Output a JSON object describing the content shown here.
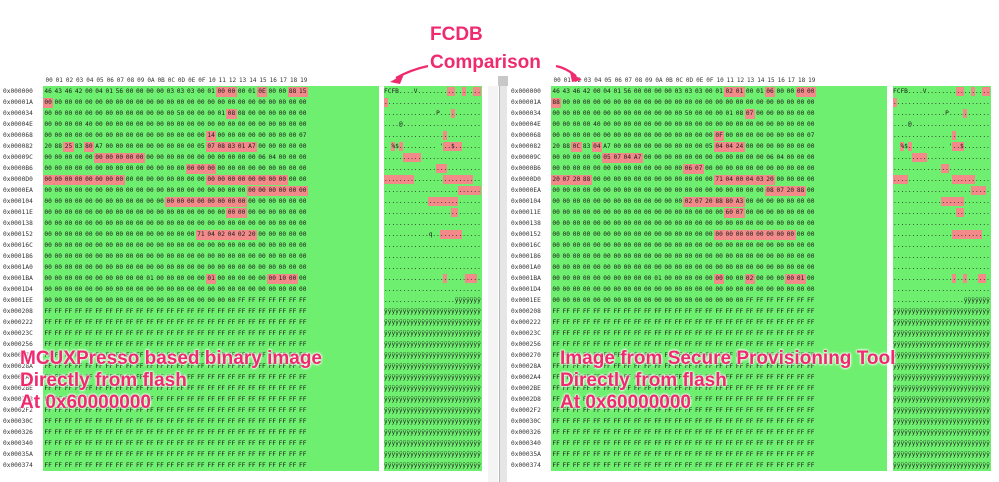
{
  "title_line1": "FCDB",
  "title_line2": "Comparison",
  "header_cols": [
    "00",
    "01",
    "02",
    "03",
    "04",
    "05",
    "06",
    "07",
    "08",
    "09",
    "0A",
    "0B",
    "0C",
    "0D",
    "0E",
    "0F",
    "10",
    "11",
    "12",
    "13",
    "14",
    "15",
    "16",
    "17",
    "18",
    "19"
  ],
  "offsets": [
    "0x000000",
    "0x00001A",
    "0x000034",
    "0x00004E",
    "0x000068",
    "0x000082",
    "0x00009C",
    "0x0000B6",
    "0x0000D0",
    "0x0000EA",
    "0x000104",
    "0x00011E",
    "0x000138",
    "0x000152",
    "0x00016C",
    "0x000186",
    "0x0001A0",
    "0x0001BA",
    "0x0001D4",
    "0x0001EE",
    "0x000208",
    "0x000222",
    "0x00023C",
    "0x000256",
    "0x000270",
    "0x00028A",
    "0x0002A4",
    "0x0002BE",
    "0x0002D8",
    "0x0002F2",
    "0x00030C",
    "0x000326",
    "0x000340",
    "0x00035A",
    "0x000374"
  ],
  "left": {
    "annotation": [
      "MCUXPresso based binary image",
      "Directly from flash",
      "At 0x60000000"
    ],
    "rows": [
      "46 43 46 42 00 04 01 56 00 00 00 00 03 03 03 00 01 00 00 00 01 0E 00 00 88 15",
      "00 00 00 00 00 00 00 00 00 00 00 00 00 00 00 00 00 00 00 00 00 00 00 00 00 00",
      "00 00 00 00 00 00 00 00 00 00 00 00 00 50 00 00 00 01 08 08 00 00 00 00 00 00",
      "00 00 00 00 40 00 00 00 00 00 00 00 00 00 00 00 00 00 00 00 00 00 00 00 00 00",
      "00 00 00 00 00 00 00 00 00 00 00 00 00 00 00 00 14 00 00 00 00 00 00 00 00 07",
      "20 88 25 83 80 A7 00 00 00 00 00 00 00 00 00 05 07 08 83 01 A7 00 00 00 00 00",
      "00 00 00 00 00 00 00 00 00 00 00 00 00 00 00 00 00 00 00 00 00 06 04 00 00 00",
      "00 00 00 00 00 00 00 00 00 00 00 00 00 00 00 00 00 00 00 00 00 00 00 00 00 00",
      "00 00 00 00 00 00 00 00 00 00 00 00 00 00 00 00 00 00 00 00 00 00 00 00 00 00",
      "00 00 00 00 00 00 00 00 00 00 00 00 00 00 00 00 00 00 00 00 00 00 00 00 00 00",
      "00 00 00 00 00 00 00 00 00 00 00 00 00 00 00 00 00 00 00 00 00 00 00 00 00 00",
      "00 00 00 00 00 00 00 00 00 00 00 00 00 00 00 00 00 00 00 00 00 00 00 00 00 00",
      "00 00 00 00 00 00 00 00 00 00 00 00 00 00 00 00 00 00 00 00 00 00 00 00 00 00",
      "00 00 00 00 00 00 00 00 00 00 00 00 00 00 00 71 04 02 04 02 20 00 00 00 00 00",
      "00 00 00 00 00 00 00 00 00 00 00 00 00 00 00 00 00 00 00 00 00 00 00 00 00 00",
      "00 00 00 00 00 00 00 00 00 00 00 00 00 00 00 00 00 00 00 00 00 00 00 00 00 00",
      "00 00 00 00 00 00 00 00 00 00 00 00 00 00 00 00 00 00 00 00 00 00 00 00 00 00",
      "00 00 00 00 00 00 00 00 00 00 01 00 00 00 00 00 01 00 00 00 00 00 00 10 00 00",
      "00 00 00 00 00 00 00 00 00 00 00 00 00 00 00 00 00 00 00 00 00 00 00 00 00 00",
      "00 00 00 00 00 00 00 00 00 00 00 00 00 00 00 00 00 00 00 FF FF FF FF FF FF FF",
      "FF FF FF FF FF FF FF FF FF FF FF FF FF FF FF FF FF FF FF FF FF FF FF FF FF FF",
      "FF FF FF FF FF FF FF FF FF FF FF FF FF FF FF FF FF FF FF FF FF FF FF FF FF FF",
      "FF FF FF FF FF FF FF FF FF FF FF FF FF FF FF FF FF FF FF FF FF FF FF FF FF FF",
      "FF FF FF FF FF FF FF FF FF FF FF FF FF FF FF FF FF FF FF FF FF FF FF FF FF FF",
      "FF FF FF FF FF FF FF FF FF FF FF FF FF FF FF FF FF FF FF FF FF FF FF FF FF FF",
      "FF FF FF FF FF FF FF FF FF FF FF FF FF FF FF FF FF FF FF FF FF FF FF FF FF FF",
      "FF FF FF FF FF FF FF FF FF FF FF FF FF FF FF FF FF FF FF FF FF FF FF FF FF FF",
      "FF FF FF FF FF FF FF FF FF FF FF FF FF FF FF FF FF FF FF FF FF FF FF FF FF FF",
      "FF FF FF FF FF FF FF FF FF FF FF FF FF FF FF FF FF FF FF FF FF FF FF FF FF FF",
      "FF FF FF FF FF FF FF FF FF FF FF FF FF FF FF FF FF FF FF FF FF FF FF FF FF FF",
      "FF FF FF FF FF FF FF FF FF FF FF FF FF FF FF FF FF FF FF FF FF FF FF FF FF FF",
      "FF FF FF FF FF FF FF FF FF FF FF FF FF FF FF FF FF FF FF FF FF FF FF FF FF FF",
      "FF FF FF FF FF FF FF FF FF FF FF FF FF FF FF FF FF FF FF FF FF FF FF FF FF FF",
      "FF FF FF FF FF FF FF FF FF FF FF FF FF FF FF FF FF FF FF FF FF FF FF FF FF FF",
      "FF FF FF FF FF FF FF FF FF FF FF FF FF FF FF FF FF FF FF FF FF FF FF FF FF FF"
    ],
    "diffs": [
      [
        0,
        17
      ],
      [
        0,
        18
      ],
      [
        0,
        21
      ],
      [
        0,
        24
      ],
      [
        0,
        25
      ],
      [
        1,
        0
      ],
      [
        2,
        18
      ],
      [
        4,
        16
      ],
      [
        5,
        2
      ],
      [
        5,
        4
      ],
      [
        5,
        16
      ],
      [
        5,
        17
      ],
      [
        5,
        18
      ],
      [
        5,
        19
      ],
      [
        5,
        20
      ],
      [
        6,
        5
      ],
      [
        6,
        6
      ],
      [
        6,
        7
      ],
      [
        6,
        8
      ],
      [
        6,
        9
      ],
      [
        7,
        14
      ],
      [
        7,
        15
      ],
      [
        7,
        16
      ],
      [
        8,
        0
      ],
      [
        8,
        1
      ],
      [
        8,
        2
      ],
      [
        8,
        3
      ],
      [
        8,
        4
      ],
      [
        8,
        5
      ],
      [
        8,
        6
      ],
      [
        8,
        7
      ],
      [
        8,
        16
      ],
      [
        8,
        17
      ],
      [
        8,
        18
      ],
      [
        8,
        19
      ],
      [
        8,
        20
      ],
      [
        8,
        21
      ],
      [
        8,
        22
      ],
      [
        8,
        23
      ],
      [
        9,
        20
      ],
      [
        9,
        21
      ],
      [
        9,
        22
      ],
      [
        9,
        23
      ],
      [
        9,
        24
      ],
      [
        9,
        25
      ],
      [
        10,
        12
      ],
      [
        10,
        13
      ],
      [
        10,
        14
      ],
      [
        10,
        15
      ],
      [
        10,
        16
      ],
      [
        10,
        17
      ],
      [
        10,
        18
      ],
      [
        10,
        19
      ],
      [
        11,
        18
      ],
      [
        11,
        19
      ],
      [
        13,
        15
      ],
      [
        13,
        16
      ],
      [
        13,
        17
      ],
      [
        13,
        18
      ],
      [
        13,
        19
      ],
      [
        13,
        20
      ],
      [
        17,
        16
      ],
      [
        17,
        22
      ],
      [
        17,
        23
      ],
      [
        17,
        24
      ]
    ],
    "ascii": [
      "FCFB....V.................",
      "..........................",
      "..............P...........",
      "....@.....................",
      "..........................",
      ". %$.......... '..$........",
      "..........................",
      "..........................",
      "..........................",
      "..........................",
      "..........................",
      "..........................",
      "..........................",
      "............q.............",
      "..........................",
      "..........................",
      "..........................",
      "..........................",
      "..........................",
      "...................ÿÿÿÿÿÿÿ",
      "ÿÿÿÿÿÿÿÿÿÿÿÿÿÿÿÿÿÿÿÿÿÿÿÿÿÿ",
      "ÿÿÿÿÿÿÿÿÿÿÿÿÿÿÿÿÿÿÿÿÿÿÿÿÿÿ",
      "ÿÿÿÿÿÿÿÿÿÿÿÿÿÿÿÿÿÿÿÿÿÿÿÿÿÿ",
      "ÿÿÿÿÿÿÿÿÿÿÿÿÿÿÿÿÿÿÿÿÿÿÿÿÿÿ",
      "ÿÿÿÿÿÿÿÿÿÿÿÿÿÿÿÿÿÿÿÿÿÿÿÿÿÿ",
      "ÿÿÿÿÿÿÿÿÿÿÿÿÿÿÿÿÿÿÿÿÿÿÿÿÿÿ",
      "ÿÿÿÿÿÿÿÿÿÿÿÿÿÿÿÿÿÿÿÿÿÿÿÿÿÿ",
      "ÿÿÿÿÿÿÿÿÿÿÿÿÿÿÿÿÿÿÿÿÿÿÿÿÿÿ",
      "ÿÿÿÿÿÿÿÿÿÿÿÿÿÿÿÿÿÿÿÿÿÿÿÿÿÿ",
      "ÿÿÿÿÿÿÿÿÿÿÿÿÿÿÿÿÿÿÿÿÿÿÿÿÿÿ",
      "ÿÿÿÿÿÿÿÿÿÿÿÿÿÿÿÿÿÿÿÿÿÿÿÿÿÿ",
      "ÿÿÿÿÿÿÿÿÿÿÿÿÿÿÿÿÿÿÿÿÿÿÿÿÿÿ",
      "ÿÿÿÿÿÿÿÿÿÿÿÿÿÿÿÿÿÿÿÿÿÿÿÿÿÿ",
      "ÿÿÿÿÿÿÿÿÿÿÿÿÿÿÿÿÿÿÿÿÿÿÿÿÿÿ",
      "ÿÿÿÿÿÿÿÿÿÿÿÿÿÿÿÿÿÿÿÿÿÿÿÿÿÿ"
    ]
  },
  "right": {
    "annotation": [
      "Image from Secure Provisioning Tool",
      "Directly from flash",
      "At 0x60000000"
    ],
    "rows": [
      "46 43 46 42 00 04 01 56 00 00 00 00 03 03 03 00 01 02 01 00 01 06 00 00 00 00",
      "88 00 00 00 00 00 00 00 00 00 00 00 00 00 00 00 00 00 00 00 00 00 00 00 00 00",
      "00 00 00 00 00 00 00 00 00 00 00 00 00 50 00 00 00 01 08 07 00 00 00 00 00 00",
      "00 00 00 00 40 00 00 00 00 00 00 00 00 00 00 00 00 00 00 00 00 00 00 00 00 00",
      "00 00 00 00 00 00 00 00 00 00 00 00 00 00 00 00 0F 00 00 00 00 00 00 00 00 07",
      "20 88 0C 83 04 A7 00 00 00 00 00 00 00 00 00 05 04 04 24 00 00 00 00 00 00 00",
      "00 00 00 00 00 05 07 04 A7 00 00 00 00 00 00 00 00 00 00 00 00 06 04 00 00 00",
      "00 00 00 00 00 00 00 00 00 00 00 00 00 06 07 00 00 00 00 00 00 00 00 00 00 00",
      "20 07 20 88 00 00 00 00 00 00 00 00 00 00 00 00 71 04 00 04 03 20 00 00 00 00",
      "00 00 00 00 00 00 00 00 00 00 00 00 00 00 00 00 00 00 00 00 00 08 07 20 88 00",
      "00 00 00 00 00 00 00 00 00 00 00 00 00 02 07 20 88 80 A3 00 00 00 00 00 00 00",
      "00 00 00 00 00 00 00 00 00 00 00 00 00 00 00 00 00 60 07 00 00 00 00 00 00 00",
      "00 00 00 00 00 00 00 00 00 00 00 00 00 00 00 00 00 00 00 00 00 00 00 00 00 00",
      "00 00 00 00 00 00 00 00 00 00 00 00 00 00 00 00 00 00 00 00 00 00 00 00 00 00",
      "00 00 00 00 00 00 00 00 00 00 00 00 00 00 00 00 00 00 00 00 00 00 00 00 00 00",
      "00 00 00 00 00 00 00 00 00 00 00 00 00 00 00 00 00 00 00 00 00 00 00 00 00 00",
      "00 00 00 00 00 00 00 00 00 00 00 00 00 00 00 00 00 00 00 00 00 00 00 00 00 00",
      "00 00 00 00 00 00 00 00 00 00 01 00 00 00 00 00 00 00 00 02 00 00 00 00 01 00",
      "00 00 00 00 00 00 00 00 00 00 00 00 00 00 00 00 00 00 00 00 00 00 00 00 00 00",
      "00 00 00 00 00 00 00 00 00 00 00 00 00 00 00 00 00 00 00 FF FF FF FF FF FF FF",
      "FF FF FF FF FF FF FF FF FF FF FF FF FF FF FF FF FF FF FF FF FF FF FF FF FF FF",
      "FF FF FF FF FF FF FF FF FF FF FF FF FF FF FF FF FF FF FF FF FF FF FF FF FF FF",
      "FF FF FF FF FF FF FF FF FF FF FF FF FF FF FF FF FF FF FF FF FF FF FF FF FF FF",
      "FF FF FF FF FF FF FF FF FF FF FF FF FF FF FF FF FF FF FF FF FF FF FF FF FF FF",
      "FF FF FF FF FF FF FF FF FF FF FF FF FF FF FF FF FF FF FF FF FF FF FF FF FF FF",
      "FF FF FF FF FF FF FF FF FF FF FF FF FF FF FF FF FF FF FF FF FF FF FF FF FF FF",
      "FF FF FF FF FF FF FF FF FF FF FF FF FF FF FF FF FF FF FF FF FF FF FF FF FF FF",
      "FF FF FF FF FF FF FF FF FF FF FF FF FF FF FF FF FF FF FF FF FF FF FF FF FF FF",
      "FF FF FF FF FF FF FF FF FF FF FF FF FF FF FF FF FF FF FF FF FF FF FF FF FF FF",
      "FF FF FF FF FF FF FF FF FF FF FF FF FF FF FF FF FF FF FF FF FF FF FF FF FF FF",
      "FF FF FF FF FF FF FF FF FF FF FF FF FF FF FF FF FF FF FF FF FF FF FF FF FF FF",
      "FF FF FF FF FF FF FF FF FF FF FF FF FF FF FF FF FF FF FF FF FF FF FF FF FF FF",
      "FF FF FF FF FF FF FF FF FF FF FF FF FF FF FF FF FF FF FF FF FF FF FF FF FF FF",
      "FF FF FF FF FF FF FF FF FF FF FF FF FF FF FF FF FF FF FF FF FF FF FF FF FF FF",
      "FF FF FF FF FF FF FF FF FF FF FF FF FF FF FF FF FF FF FF FF FF FF FF FF FF FF"
    ],
    "diffs": [
      [
        0,
        17
      ],
      [
        0,
        18
      ],
      [
        0,
        21
      ],
      [
        0,
        24
      ],
      [
        0,
        25
      ],
      [
        1,
        0
      ],
      [
        2,
        19
      ],
      [
        4,
        16
      ],
      [
        5,
        2
      ],
      [
        5,
        4
      ],
      [
        5,
        16
      ],
      [
        5,
        17
      ],
      [
        5,
        18
      ],
      [
        6,
        5
      ],
      [
        6,
        6
      ],
      [
        6,
        7
      ],
      [
        6,
        8
      ],
      [
        7,
        13
      ],
      [
        7,
        14
      ],
      [
        8,
        0
      ],
      [
        8,
        1
      ],
      [
        8,
        2
      ],
      [
        8,
        3
      ],
      [
        8,
        16
      ],
      [
        8,
        17
      ],
      [
        8,
        18
      ],
      [
        8,
        19
      ],
      [
        8,
        20
      ],
      [
        8,
        21
      ],
      [
        9,
        21
      ],
      [
        9,
        22
      ],
      [
        9,
        23
      ],
      [
        9,
        24
      ],
      [
        10,
        13
      ],
      [
        10,
        14
      ],
      [
        10,
        15
      ],
      [
        10,
        16
      ],
      [
        10,
        17
      ],
      [
        10,
        18
      ],
      [
        11,
        17
      ],
      [
        11,
        18
      ],
      [
        13,
        16
      ],
      [
        13,
        17
      ],
      [
        13,
        18
      ],
      [
        13,
        19
      ],
      [
        13,
        20
      ],
      [
        13,
        21
      ],
      [
        13,
        22
      ],
      [
        13,
        23
      ],
      [
        17,
        16
      ],
      [
        17,
        19
      ],
      [
        17,
        23
      ],
      [
        17,
        24
      ]
    ],
    "ascii": [
      "FCFB....V.................",
      "..........................",
      "..............P...........",
      "....@.....................",
      "..........................",
      "  %$.......... '..$........",
      "..........................",
      "..........................",
      "..........................",
      "..........................",
      "..........................",
      "..........................",
      "..........................",
      "..........................",
      "..........................",
      "..........................",
      "..........................",
      "..........................",
      "..........................",
      "...................ÿÿÿÿÿÿÿ",
      "ÿÿÿÿÿÿÿÿÿÿÿÿÿÿÿÿÿÿÿÿÿÿÿÿÿÿ",
      "ÿÿÿÿÿÿÿÿÿÿÿÿÿÿÿÿÿÿÿÿÿÿÿÿÿÿ",
      "ÿÿÿÿÿÿÿÿÿÿÿÿÿÿÿÿÿÿÿÿÿÿÿÿÿÿ",
      "ÿÿÿÿÿÿÿÿÿÿÿÿÿÿÿÿÿÿÿÿÿÿÿÿÿÿ",
      "ÿÿÿÿÿÿÿÿÿÿÿÿÿÿÿÿÿÿÿÿÿÿÿÿÿÿ",
      "ÿÿÿÿÿÿÿÿÿÿÿÿÿÿÿÿÿÿÿÿÿÿÿÿÿÿ",
      "ÿÿÿÿÿÿÿÿÿÿÿÿÿÿÿÿÿÿÿÿÿÿÿÿÿÿ",
      "ÿÿÿÿÿÿÿÿÿÿÿÿÿÿÿÿÿÿÿÿÿÿÿÿÿÿ",
      "ÿÿÿÿÿÿÿÿÿÿÿÿÿÿÿÿÿÿÿÿÿÿÿÿÿÿ",
      "ÿÿÿÿÿÿÿÿÿÿÿÿÿÿÿÿÿÿÿÿÿÿÿÿÿÿ",
      "ÿÿÿÿÿÿÿÿÿÿÿÿÿÿÿÿÿÿÿÿÿÿÿÿÿÿ",
      "ÿÿÿÿÿÿÿÿÿÿÿÿÿÿÿÿÿÿÿÿÿÿÿÿÿÿ",
      "ÿÿÿÿÿÿÿÿÿÿÿÿÿÿÿÿÿÿÿÿÿÿÿÿÿÿ",
      "ÿÿÿÿÿÿÿÿÿÿÿÿÿÿÿÿÿÿÿÿÿÿÿÿÿÿ",
      "ÿÿÿÿÿÿÿÿÿÿÿÿÿÿÿÿÿÿÿÿÿÿÿÿÿÿ"
    ]
  },
  "colors": {
    "match": "#6fef6f",
    "diff": "#f38a8a",
    "annotation": "#ef2a6f"
  }
}
